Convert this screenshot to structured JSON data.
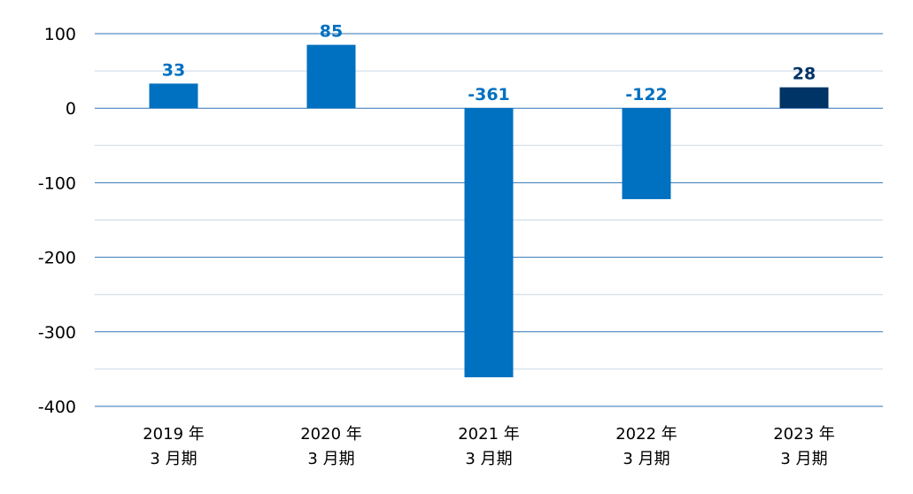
{
  "colors": {
    "bar": "#0070C0",
    "bar_highlight": "#003366",
    "label": "#0070C0",
    "label_highlight": "#003366",
    "major_grid": "#2E74B5",
    "minor_grid": "#C7D6E6"
  },
  "chart_data": {
    "type": "bar",
    "title": "",
    "xlabel": "",
    "ylabel": "",
    "ylim": [
      -400,
      100
    ],
    "yticks": [
      100,
      0,
      -100,
      -200,
      -300,
      -400
    ],
    "grid": true,
    "categories": [
      {
        "line1": "2019 年",
        "line2": "3 月期"
      },
      {
        "line1": "2020 年",
        "line2": "3 月期"
      },
      {
        "line1": "2021 年",
        "line2": "3 月期"
      },
      {
        "line1": "2022 年",
        "line2": "3 月期"
      },
      {
        "line1": "2023 年",
        "line2": "3 月期"
      }
    ],
    "values": [
      33,
      85,
      -361,
      -122,
      28
    ],
    "value_labels": [
      "33",
      "85",
      "-361",
      "-122",
      "28"
    ],
    "highlight_index": 4
  }
}
